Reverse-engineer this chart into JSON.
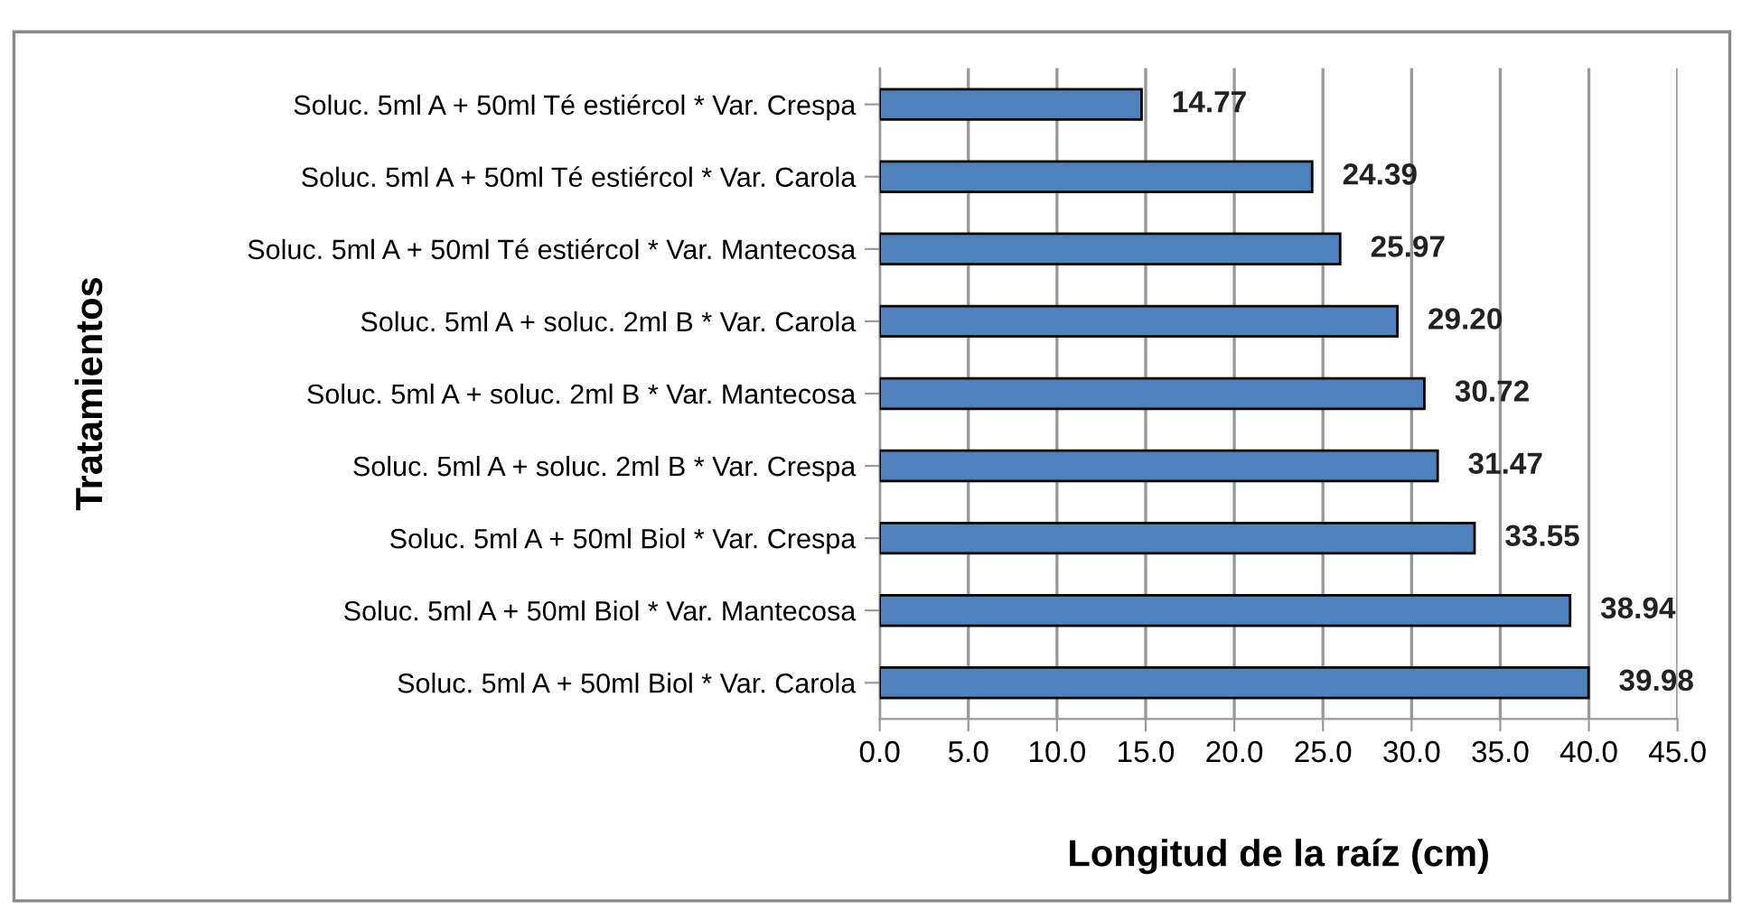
{
  "chart_data": {
    "type": "bar",
    "orientation": "horizontal",
    "categories": [
      "Soluc. 5ml A + 50ml Té estiércol * Var. Crespa",
      "Soluc. 5ml A + 50ml Té estiércol * Var. Carola",
      "Soluc. 5ml A + 50ml Té estiércol * Var. Mantecosa",
      "Soluc. 5ml A + soluc. 2ml B * Var. Carola",
      "Soluc. 5ml A + soluc. 2ml B * Var. Mantecosa",
      "Soluc. 5ml A + soluc. 2ml B * Var. Crespa",
      "Soluc. 5ml A + 50ml Biol * Var. Crespa",
      "Soluc. 5ml A + 50ml Biol * Var. Mantecosa",
      "Soluc. 5ml A + 50ml Biol * Var. Carola"
    ],
    "values": [
      14.77,
      24.39,
      25.97,
      29.2,
      30.72,
      31.47,
      33.55,
      38.94,
      39.98
    ],
    "value_labels": [
      "14.77",
      "24.39",
      "25.97",
      "29.20",
      "30.72",
      "31.47",
      "33.55",
      "38.94",
      "39.98"
    ],
    "color": "#4f81bd",
    "xlim": [
      0,
      45
    ],
    "xticks": [
      {
        "value": 0,
        "label": "0.0"
      },
      {
        "value": 5,
        "label": "5.0"
      },
      {
        "value": 10,
        "label": "10.0"
      },
      {
        "value": 15,
        "label": "15.0"
      },
      {
        "value": 20,
        "label": "20.0"
      },
      {
        "value": 25,
        "label": "25.0"
      },
      {
        "value": 30,
        "label": "30.0"
      },
      {
        "value": 35,
        "label": "35.0"
      },
      {
        "value": 40,
        "label": "40.0"
      },
      {
        "value": 45,
        "label": "45.0"
      }
    ],
    "xlabel": "Longitud de la raíz (cm)",
    "ylabel": "Tratamientos",
    "grid": "x",
    "legend": false
  }
}
